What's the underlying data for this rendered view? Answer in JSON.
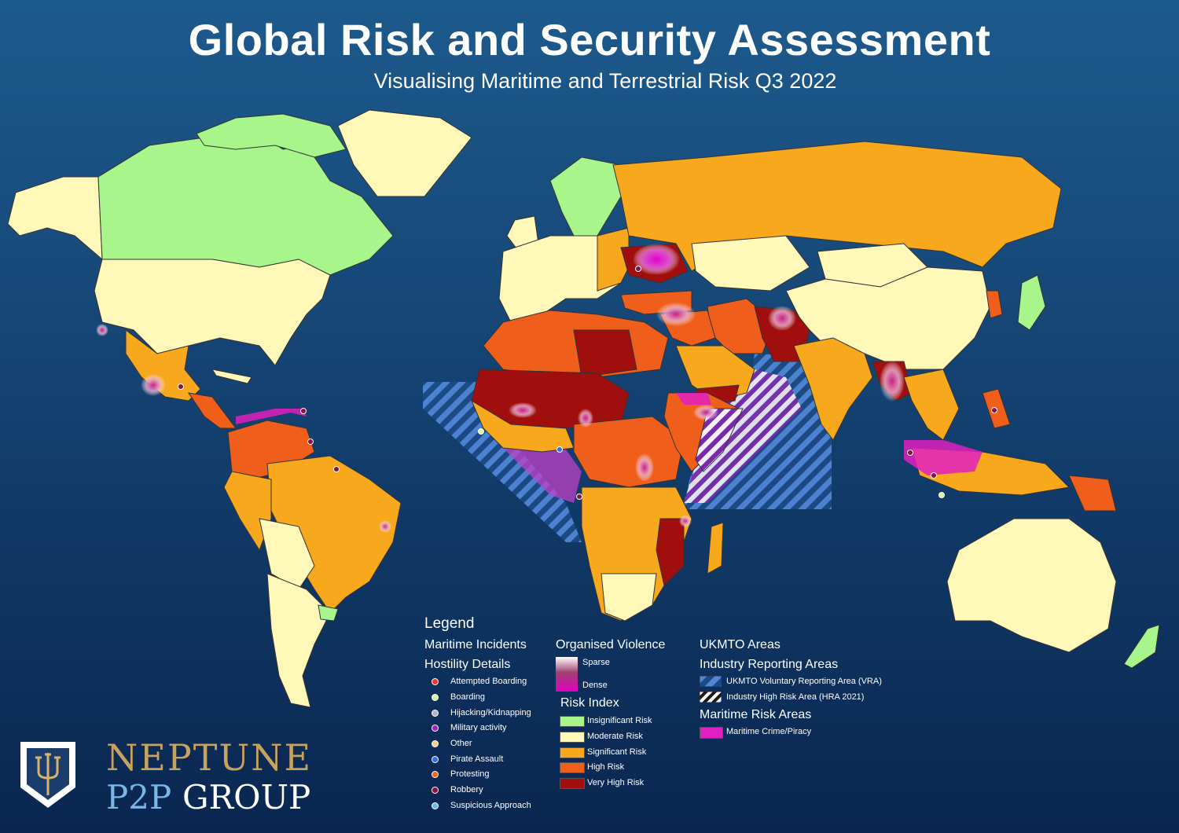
{
  "header": {
    "title": "Global Risk and Security Assessment",
    "subtitle": "Visualising Maritime and Terrestrial Risk Q3 2022"
  },
  "legend": {
    "heading": "Legend",
    "maritime": {
      "heading": "Maritime Incidents",
      "subheading": "Hostility Details",
      "items": [
        {
          "label": "Attempted Boarding",
          "color": "#e8392f"
        },
        {
          "label": "Boarding",
          "color": "#d9f5a0"
        },
        {
          "label": "Hijacking/Kidnapping",
          "color": "#b9b2c2"
        },
        {
          "label": "Military activity",
          "color": "#a020c8"
        },
        {
          "label": "Other",
          "color": "#f2d27a"
        },
        {
          "label": "Pirate Assault",
          "color": "#2a6ee8"
        },
        {
          "label": "Protesting",
          "color": "#f06a24"
        },
        {
          "label": "Robbery",
          "color": "#8a1040"
        },
        {
          "label": "Suspicious Approach",
          "color": "#6fb4e8"
        }
      ]
    },
    "violence": {
      "heading": "Organised Violence",
      "sparse": "Sparse",
      "dense": "Dense"
    },
    "risk": {
      "heading": "Risk Index",
      "items": [
        {
          "label": "Insignificant Risk",
          "color": "#a8f58c"
        },
        {
          "label": "Moderate Risk",
          "color": "#fff8b8"
        },
        {
          "label": "Significant Risk",
          "color": "#f8a81c"
        },
        {
          "label": "High Risk",
          "color": "#f05e1c"
        },
        {
          "label": "Very High Risk",
          "color": "#a00e0e"
        }
      ]
    },
    "ukmto": {
      "heading": "UKMTO Areas",
      "subheading": "Industry Reporting Areas",
      "vra": "UKMTO Voluntary Reporting Area (VRA)",
      "hra": "Industry High Risk Area (HRA 2021)"
    },
    "maritime_risk": {
      "heading": "Maritime Risk Areas",
      "crime": "Maritime Crime/Piracy",
      "color": "#e020c0"
    }
  },
  "logo": {
    "line1": "NEPTUNE",
    "line2a": "P2P",
    "line2b": "GROUP"
  }
}
